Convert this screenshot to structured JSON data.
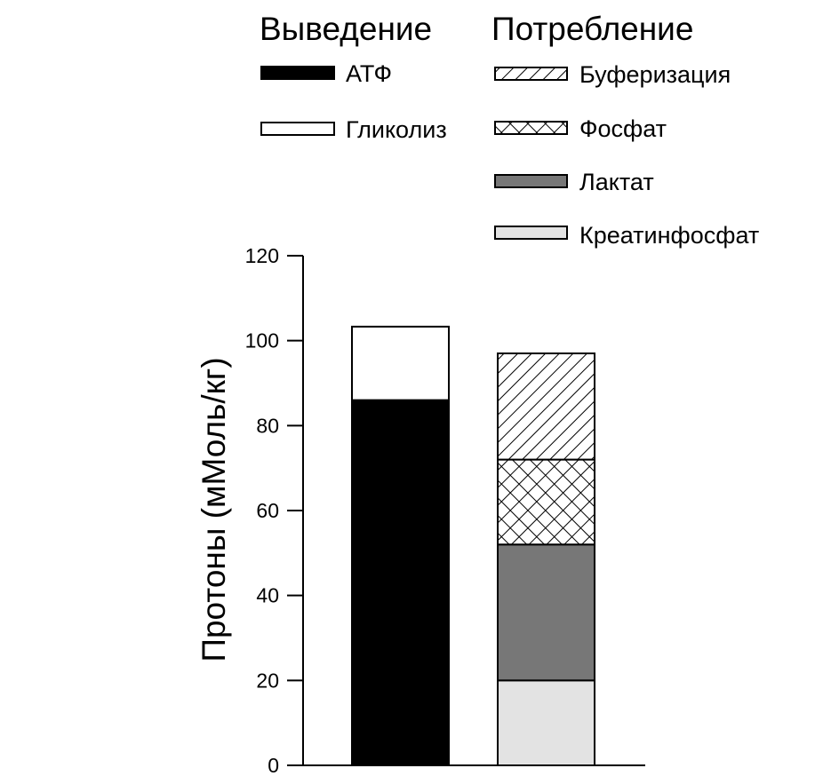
{
  "legend": {
    "production_heading": "Выведение",
    "consumption_heading": "Потребление",
    "production_items": [
      {
        "label": "АТФ",
        "fill": "black"
      },
      {
        "label": "Гликолиз",
        "fill": "white"
      }
    ],
    "consumption_items": [
      {
        "label": "Буферизация",
        "fill": "diagonal-hatch"
      },
      {
        "label": "Фосфат",
        "fill": "cross-hatch"
      },
      {
        "label": "Лактат",
        "fill": "dark-gray"
      },
      {
        "label": "Креатинфосфат",
        "fill": "light-gray"
      }
    ]
  },
  "chart_data": {
    "type": "bar",
    "stacked": true,
    "ylabel": "Протоны (мМоль/кг)",
    "xlabel": "",
    "ylim": [
      0,
      120
    ],
    "yticks": [
      0,
      20,
      40,
      60,
      80,
      100,
      120
    ],
    "bars": [
      {
        "group": "Выведение",
        "segments": [
          {
            "name": "АТФ",
            "value": 86
          },
          {
            "name": "Гликолиз",
            "value": 17.3
          }
        ]
      },
      {
        "group": "Потребление",
        "segments": [
          {
            "name": "Креатинфосфат",
            "value": 20
          },
          {
            "name": "Лактат",
            "value": 32
          },
          {
            "name": "Фосфат",
            "value": 20
          },
          {
            "name": "Буферизация",
            "value": 25
          }
        ]
      }
    ]
  },
  "colors": {
    "black": "#000000",
    "white": "#ffffff",
    "dark-gray": "#777777",
    "light-gray": "#e3e3e3",
    "stroke": "#000000"
  }
}
